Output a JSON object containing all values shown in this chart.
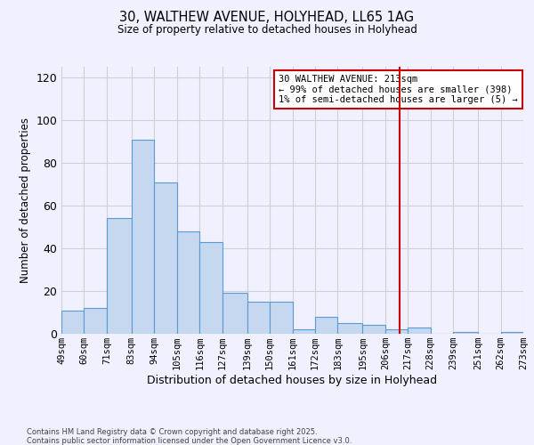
{
  "title": "30, WALTHEW AVENUE, HOLYHEAD, LL65 1AG",
  "subtitle": "Size of property relative to detached houses in Holyhead",
  "xlabel": "Distribution of detached houses by size in Holyhead",
  "ylabel": "Number of detached properties",
  "bins": [
    49,
    60,
    71,
    83,
    94,
    105,
    116,
    127,
    139,
    150,
    161,
    172,
    183,
    195,
    206,
    217,
    228,
    239,
    251,
    262,
    273
  ],
  "counts": [
    11,
    12,
    54,
    91,
    71,
    48,
    43,
    19,
    15,
    15,
    2,
    8,
    5,
    4,
    2,
    3,
    0,
    1,
    0,
    1
  ],
  "bar_color": "#c5d8f0",
  "bar_edge_color": "#5b9bd5",
  "vline_x": 213,
  "vline_color": "#cc0000",
  "annotation_text": "30 WALTHEW AVENUE: 213sqm\n← 99% of detached houses are smaller (398)\n1% of semi-detached houses are larger (5) →",
  "annotation_box_edge_color": "#cc0000",
  "annotation_box_face_color": "#ffffff",
  "ylim": [
    0,
    125
  ],
  "yticks": [
    0,
    20,
    40,
    60,
    80,
    100,
    120
  ],
  "tick_labels": [
    "49sqm",
    "60sqm",
    "71sqm",
    "83sqm",
    "94sqm",
    "105sqm",
    "116sqm",
    "127sqm",
    "139sqm",
    "150sqm",
    "161sqm",
    "172sqm",
    "183sqm",
    "195sqm",
    "206sqm",
    "217sqm",
    "228sqm",
    "239sqm",
    "251sqm",
    "262sqm",
    "273sqm"
  ],
  "grid_color": "#d0d0d0",
  "background_color": "#f0f0ff",
  "footnote1": "Contains HM Land Registry data © Crown copyright and database right 2025.",
  "footnote2": "Contains public sector information licensed under the Open Government Licence v3.0."
}
